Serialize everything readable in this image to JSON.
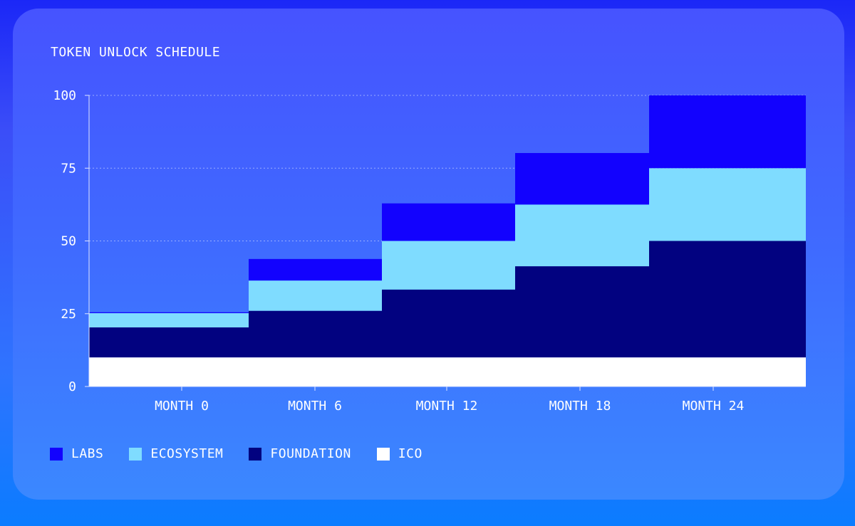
{
  "chart_data": {
    "type": "area",
    "title": "TOKEN UNLOCK SCHEDULE",
    "xlabel": "",
    "ylabel": "",
    "categories": [
      "MONTH 0",
      "MONTH 6",
      "MONTH 12",
      "MONTH 18",
      "MONTH 24"
    ],
    "ylim": [
      0,
      100
    ],
    "yticks": [
      0,
      25,
      50,
      75,
      100
    ],
    "ytick_labels": [
      "0",
      "25",
      "50",
      "75",
      "100"
    ],
    "grid": true,
    "legend_position": "bottom-left",
    "stepped": true,
    "series": [
      {
        "name": "ICO",
        "color": "#ffffff",
        "values": [
          10,
          10,
          10,
          10,
          10
        ]
      },
      {
        "name": "FOUNDATION",
        "color": "#020280",
        "values": [
          10.3,
          16,
          23.3,
          31.3,
          40
        ]
      },
      {
        "name": "ECOSYSTEM",
        "color": "#7fdcff",
        "values": [
          4.9,
          10.4,
          16.7,
          21.2,
          25
        ]
      },
      {
        "name": "LABS",
        "color": "#1202fe",
        "values": [
          0.3,
          7.4,
          12.9,
          17.7,
          25
        ]
      }
    ]
  },
  "legend_items": [
    {
      "label": "LABS",
      "color": "#1202fe"
    },
    {
      "label": "ECOSYSTEM",
      "color": "#7fdcff"
    },
    {
      "label": "FOUNDATION",
      "color": "#020280"
    },
    {
      "label": "ICO",
      "color": "#ffffff"
    }
  ],
  "colors": {
    "text": "#ffffff",
    "axis": "#dfe5ff",
    "grid": "#b9c6ff"
  }
}
